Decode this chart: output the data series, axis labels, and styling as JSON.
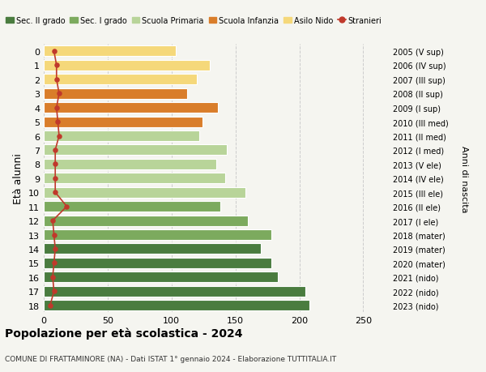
{
  "ages": [
    18,
    17,
    16,
    15,
    14,
    13,
    12,
    11,
    10,
    9,
    8,
    7,
    6,
    5,
    4,
    3,
    2,
    1,
    0
  ],
  "right_labels": [
    "2005 (V sup)",
    "2006 (IV sup)",
    "2007 (III sup)",
    "2008 (II sup)",
    "2009 (I sup)",
    "2010 (III med)",
    "2011 (II med)",
    "2012 (I med)",
    "2013 (V ele)",
    "2014 (IV ele)",
    "2015 (III ele)",
    "2016 (II ele)",
    "2017 (I ele)",
    "2018 (mater)",
    "2019 (mater)",
    "2020 (mater)",
    "2021 (nido)",
    "2022 (nido)",
    "2023 (nido)"
  ],
  "bar_values": [
    208,
    205,
    183,
    178,
    170,
    178,
    160,
    138,
    158,
    142,
    135,
    143,
    122,
    124,
    136,
    112,
    120,
    130,
    103
  ],
  "stranieri_values": [
    5,
    8,
    7,
    8,
    9,
    8,
    7,
    18,
    9,
    9,
    9,
    9,
    12,
    11,
    10,
    12,
    10,
    10,
    8
  ],
  "bar_colors": [
    "#4a7c3f",
    "#4a7c3f",
    "#4a7c3f",
    "#4a7c3f",
    "#4a7c3f",
    "#7caa5e",
    "#7caa5e",
    "#7caa5e",
    "#b8d499",
    "#b8d499",
    "#b8d499",
    "#b8d499",
    "#b8d499",
    "#d97d2a",
    "#d97d2a",
    "#d97d2a",
    "#f5d87a",
    "#f5d87a",
    "#f5d87a"
  ],
  "legend_labels": [
    "Sec. II grado",
    "Sec. I grado",
    "Scuola Primaria",
    "Scuola Infanzia",
    "Asilo Nido",
    "Stranieri"
  ],
  "legend_colors": [
    "#4a7c3f",
    "#7caa5e",
    "#b8d499",
    "#d97d2a",
    "#f5d87a",
    "#c0392b"
  ],
  "stranieri_color": "#c0392b",
  "ylabel_left": "Età alunni",
  "ylabel_right": "Anni di nascita",
  "title": "Popolazione per età scolastica - 2024",
  "subtitle": "COMUNE DI FRATTAMINORE (NA) - Dati ISTAT 1° gennaio 2024 - Elaborazione TUTTITALIA.IT",
  "xlim": [
    0,
    270
  ],
  "xticks": [
    0,
    50,
    100,
    150,
    200,
    250
  ],
  "background_color": "#f5f5f0",
  "grid_color": "#cccccc"
}
